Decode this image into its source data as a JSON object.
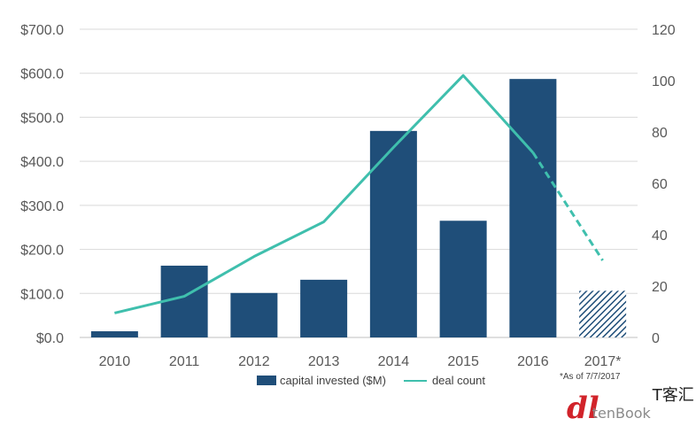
{
  "chart_data": {
    "type": "bar",
    "categories": [
      "2010",
      "2011",
      "2012",
      "2013",
      "2014",
      "2015",
      "2016",
      "2017*"
    ],
    "series": [
      {
        "name": "capital invested ($M)",
        "type": "bar",
        "axis": "left",
        "values": [
          14,
          163,
          101,
          131,
          469,
          265,
          587,
          106
        ],
        "color": "#1f4e79",
        "hatched_categories": [
          "2017*"
        ]
      },
      {
        "name": "deal count",
        "type": "line",
        "axis": "right",
        "values": [
          9.5,
          16,
          31.5,
          45,
          74,
          102,
          72,
          30
        ],
        "color": "#3fbfad",
        "dashed_from_category": "2016"
      }
    ],
    "y_left": {
      "ylim": [
        0,
        700
      ],
      "ticks": [
        0,
        100,
        200,
        300,
        400,
        500,
        600,
        700
      ],
      "tick_labels": [
        "$0.0",
        "$100.0",
        "$200.0",
        "$300.0",
        "$400.0",
        "$500.0",
        "$600.0",
        "$700.0"
      ]
    },
    "y_right": {
      "ylim": [
        0,
        120
      ],
      "ticks": [
        0,
        20,
        40,
        60,
        80,
        100,
        120
      ],
      "tick_labels": [
        "0",
        "20",
        "40",
        "60",
        "80",
        "100",
        "120"
      ]
    },
    "grid": "horizontal",
    "legend": "bottom-center",
    "footnote": "*As of 7/7/2017"
  },
  "watermark": {
    "glyph": "dl",
    "text": "tenBook",
    "cn": "T客汇"
  }
}
